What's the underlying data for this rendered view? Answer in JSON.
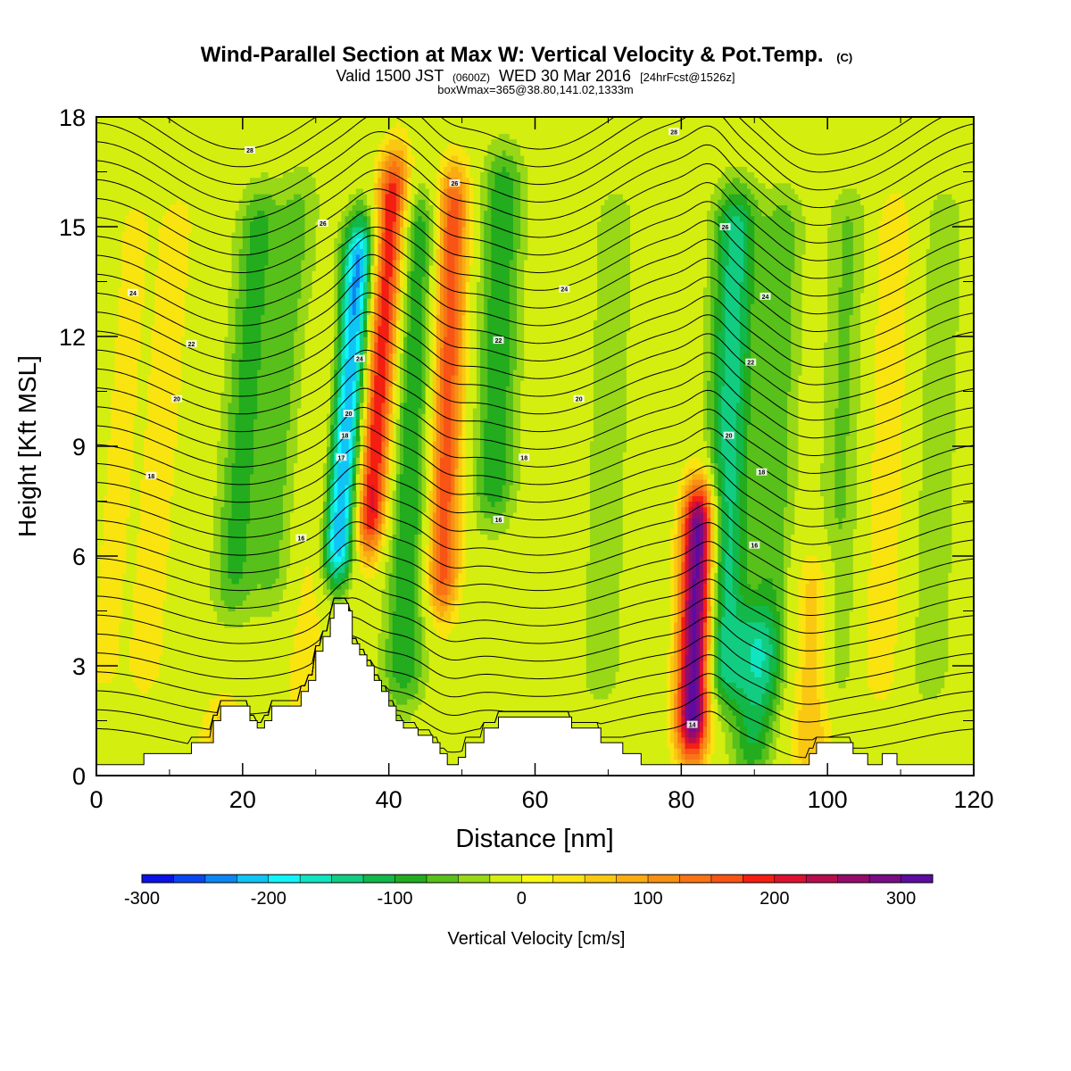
{
  "chart_data": {
    "type": "heatmap",
    "title": "Wind-Parallel Section at Max W: Vertical Velocity & Pot.Temp.",
    "title_mark": "(C)",
    "subtitle_a": "Valid 1500 JST",
    "subtitle_b": "(0600Z)",
    "subtitle_c": "WED 30 Mar 2016",
    "subtitle_d": "[24hrFcst@1526z]",
    "subtitle_line2": "boxWmax=365@38.80,141.02,1333m",
    "xlabel": "Distance [nm]",
    "ylabel": "Height [Kft MSL]",
    "xlim": [
      0,
      120
    ],
    "ylim": [
      0,
      18
    ],
    "xticks": [
      0,
      20,
      40,
      60,
      80,
      100,
      120
    ],
    "yticks": [
      0,
      3,
      6,
      9,
      12,
      15,
      18
    ],
    "colorbar": {
      "label": "Vertical Velocity [cm/s]",
      "min": -300,
      "max": 325,
      "step": 25,
      "tick_values": [
        -300,
        -200,
        -100,
        0,
        100,
        200,
        300
      ],
      "tick_labels": [
        "-300",
        "-200",
        "-100",
        "0",
        "100",
        "200",
        "300"
      ],
      "colors": [
        "#0a12e6",
        "#0a46f0",
        "#0c86f2",
        "#10c4f6",
        "#12f4f8",
        "#10e4c0",
        "#12cc82",
        "#12b84a",
        "#22ac1e",
        "#58c01a",
        "#98d816",
        "#d4ee10",
        "#f8f810",
        "#fae410",
        "#fac812",
        "#faac12",
        "#f89014",
        "#f87416",
        "#f85416",
        "#f41e12",
        "#dc1230",
        "#b80e4e",
        "#960c6c",
        "#7a0c86",
        "#5c0ca0"
      ]
    },
    "vertical_velocity_features": [
      {
        "x": 3,
        "z0": 0,
        "z1": 18,
        "w": 30
      },
      {
        "x": 9,
        "z0": 0,
        "z1": 18,
        "w": 35
      },
      {
        "x": 17.5,
        "z0": 0,
        "z1": 4,
        "w": 80
      },
      {
        "x": 20,
        "z0": 0,
        "z1": 18,
        "w": -85
      },
      {
        "x": 26,
        "z0": 3,
        "z1": 18,
        "w": -55
      },
      {
        "x": 30,
        "z0": 0,
        "z1": 14,
        "w": 40
      },
      {
        "x": 34.5,
        "z0": 4.5,
        "z1": 16,
        "w": -240
      },
      {
        "x": 39,
        "z0": 5,
        "z1": 18,
        "w": 215
      },
      {
        "x": 43,
        "z0": 0,
        "z1": 18,
        "w": -100
      },
      {
        "x": 48,
        "z0": 3,
        "z1": 18,
        "w": 170
      },
      {
        "x": 55,
        "z0": 6,
        "z1": 18,
        "w": -95
      },
      {
        "x": 70,
        "z0": 0,
        "z1": 18,
        "w": -45
      },
      {
        "x": 82,
        "z0": 0.5,
        "z1": 8,
        "w": 330
      },
      {
        "x": 86.5,
        "z0": 0,
        "z1": 18,
        "w": -140
      },
      {
        "x": 90,
        "z0": 0.5,
        "z1": 4,
        "w": -100
      },
      {
        "x": 93,
        "z0": 0,
        "z1": 18,
        "w": -65
      },
      {
        "x": 98,
        "z0": 0,
        "z1": 6,
        "w": 75
      },
      {
        "x": 102,
        "z0": 0,
        "z1": 18,
        "w": -55
      },
      {
        "x": 108,
        "z0": 0,
        "z1": 18,
        "w": 45
      },
      {
        "x": 115,
        "z0": 0,
        "z1": 18,
        "w": -45
      }
    ],
    "terrain": [
      {
        "x": 0,
        "z": 0.3
      },
      {
        "x": 6.5,
        "z": 0.3
      },
      {
        "x": 6.5,
        "z": 0.6
      },
      {
        "x": 13,
        "z": 0.6
      },
      {
        "x": 13,
        "z": 0.9
      },
      {
        "x": 16,
        "z": 0.9
      },
      {
        "x": 16,
        "z": 1.5
      },
      {
        "x": 17,
        "z": 1.5
      },
      {
        "x": 17,
        "z": 1.9
      },
      {
        "x": 21,
        "z": 1.9
      },
      {
        "x": 21,
        "z": 1.5
      },
      {
        "x": 22,
        "z": 1.5
      },
      {
        "x": 22,
        "z": 1.3
      },
      {
        "x": 23,
        "z": 1.3
      },
      {
        "x": 23,
        "z": 1.5
      },
      {
        "x": 24,
        "z": 1.5
      },
      {
        "x": 24,
        "z": 1.9
      },
      {
        "x": 28,
        "z": 1.9
      },
      {
        "x": 28,
        "z": 2.3
      },
      {
        "x": 29,
        "z": 2.3
      },
      {
        "x": 29,
        "z": 2.6
      },
      {
        "x": 30,
        "z": 2.6
      },
      {
        "x": 30,
        "z": 3.4
      },
      {
        "x": 31,
        "z": 3.4
      },
      {
        "x": 31,
        "z": 3.8
      },
      {
        "x": 32,
        "z": 3.8
      },
      {
        "x": 32,
        "z": 4.3
      },
      {
        "x": 32.5,
        "z": 4.3
      },
      {
        "x": 32.5,
        "z": 4.7
      },
      {
        "x": 34.5,
        "z": 4.7
      },
      {
        "x": 34.5,
        "z": 4.5
      },
      {
        "x": 35,
        "z": 4.5
      },
      {
        "x": 35,
        "z": 3.6
      },
      {
        "x": 36,
        "z": 3.6
      },
      {
        "x": 36,
        "z": 3.3
      },
      {
        "x": 37,
        "z": 3.3
      },
      {
        "x": 37,
        "z": 3.0
      },
      {
        "x": 38,
        "z": 3.0
      },
      {
        "x": 38,
        "z": 2.6
      },
      {
        "x": 39,
        "z": 2.6
      },
      {
        "x": 39,
        "z": 2.3
      },
      {
        "x": 40,
        "z": 2.3
      },
      {
        "x": 40,
        "z": 1.9
      },
      {
        "x": 41,
        "z": 1.9
      },
      {
        "x": 41,
        "z": 1.5
      },
      {
        "x": 42,
        "z": 1.5
      },
      {
        "x": 42,
        "z": 1.3
      },
      {
        "x": 44,
        "z": 1.3
      },
      {
        "x": 44,
        "z": 1.1
      },
      {
        "x": 46,
        "z": 1.1
      },
      {
        "x": 46,
        "z": 0.9
      },
      {
        "x": 47,
        "z": 0.9
      },
      {
        "x": 47,
        "z": 0.6
      },
      {
        "x": 48,
        "z": 0.6
      },
      {
        "x": 48,
        "z": 0.3
      },
      {
        "x": 49.5,
        "z": 0.3
      },
      {
        "x": 49.5,
        "z": 0.5
      },
      {
        "x": 50.5,
        "z": 0.5
      },
      {
        "x": 50.5,
        "z": 0.9
      },
      {
        "x": 53,
        "z": 0.9
      },
      {
        "x": 53,
        "z": 1.3
      },
      {
        "x": 55,
        "z": 1.3
      },
      {
        "x": 55,
        "z": 1.6
      },
      {
        "x": 65,
        "z": 1.6
      },
      {
        "x": 65,
        "z": 1.3
      },
      {
        "x": 69,
        "z": 1.3
      },
      {
        "x": 69,
        "z": 0.9
      },
      {
        "x": 72,
        "z": 0.9
      },
      {
        "x": 72,
        "z": 0.6
      },
      {
        "x": 74.5,
        "z": 0.6
      },
      {
        "x": 74.5,
        "z": 0.3
      },
      {
        "x": 80,
        "z": 0.3
      },
      {
        "x": 80,
        "z": 0.3
      },
      {
        "x": 88,
        "z": 0.3
      },
      {
        "x": 95,
        "z": 0.3
      },
      {
        "x": 97.5,
        "z": 0.3
      },
      {
        "x": 97.5,
        "z": 0.6
      },
      {
        "x": 98.5,
        "z": 0.6
      },
      {
        "x": 98.5,
        "z": 0.9
      },
      {
        "x": 103.5,
        "z": 0.9
      },
      {
        "x": 103.5,
        "z": 0.6
      },
      {
        "x": 105.5,
        "z": 0.6
      },
      {
        "x": 105.5,
        "z": 0.3
      },
      {
        "x": 107.5,
        "z": 0.3
      },
      {
        "x": 107.5,
        "z": 0.6
      },
      {
        "x": 109.5,
        "z": 0.6
      },
      {
        "x": 109.5,
        "z": 0.3
      },
      {
        "x": 120,
        "z": 0.3
      }
    ],
    "potential_temperature_labels": [
      {
        "text": "28",
        "x": 21,
        "z": 17.1
      },
      {
        "text": "26",
        "x": 31,
        "z": 15.1
      },
      {
        "text": "24",
        "x": 5,
        "z": 13.2
      },
      {
        "text": "22",
        "x": 13,
        "z": 11.8
      },
      {
        "text": "20",
        "x": 11,
        "z": 10.3
      },
      {
        "text": "18",
        "x": 7.5,
        "z": 8.2
      },
      {
        "text": "16",
        "x": 28,
        "z": 6.5
      },
      {
        "text": "24",
        "x": 36,
        "z": 11.4
      },
      {
        "text": "20",
        "x": 34.5,
        "z": 9.9
      },
      {
        "text": "18",
        "x": 34,
        "z": 9.3
      },
      {
        "text": "17",
        "x": 33.5,
        "z": 8.7
      },
      {
        "text": "26",
        "x": 49,
        "z": 16.2
      },
      {
        "text": "24",
        "x": 64,
        "z": 13.3
      },
      {
        "text": "22",
        "x": 55,
        "z": 11.9
      },
      {
        "text": "20",
        "x": 66,
        "z": 10.3
      },
      {
        "text": "18",
        "x": 58.5,
        "z": 8.7
      },
      {
        "text": "16",
        "x": 55,
        "z": 7.0
      },
      {
        "text": "28",
        "x": 79,
        "z": 17.6
      },
      {
        "text": "26",
        "x": 86,
        "z": 15.0
      },
      {
        "text": "24",
        "x": 91.5,
        "z": 13.1
      },
      {
        "text": "22",
        "x": 89.5,
        "z": 11.3
      },
      {
        "text": "20",
        "x": 86.5,
        "z": 9.3
      },
      {
        "text": "18",
        "x": 91,
        "z": 8.3
      },
      {
        "text": "16",
        "x": 90,
        "z": 6.3
      },
      {
        "text": "14",
        "x": 81.5,
        "z": 1.4
      }
    ]
  }
}
